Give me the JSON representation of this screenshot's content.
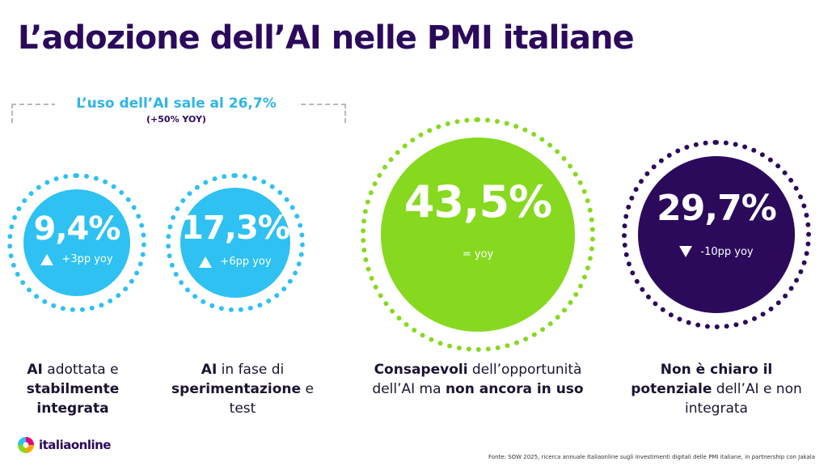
{
  "title": "L’adozione dell’AI nelle PMI italiane",
  "bracket": {
    "title": "L’uso dell’AI sale al 26,7%",
    "subtitle": "(+50% YOY)"
  },
  "colors": {
    "light_blue": "#2ec1f2",
    "green": "#86d91e",
    "dark_purple": "#2b0a5c",
    "title_purple": "#2b0a5c",
    "bracket_blue": "#2fb5e9"
  },
  "chart_data": {
    "type": "bubble-stats",
    "title": "L’adozione dell’AI nelle PMI italiane",
    "series": [
      {
        "value_label": "9,4%",
        "value": 9.4,
        "change": "+3pp yoy",
        "direction": "up",
        "caption": [
          {
            "text": "AI",
            "bold": true
          },
          {
            "text": " adottata e ",
            "bold": false
          },
          {
            "text": "stabilmente integrata",
            "bold": true
          }
        ],
        "color": "#2ec1f2"
      },
      {
        "value_label": "17,3%",
        "value": 17.3,
        "change": "+6pp yoy",
        "direction": "up",
        "caption": [
          {
            "text": "AI",
            "bold": true
          },
          {
            "text": " in fase di ",
            "bold": false
          },
          {
            "text": "sperimentazione",
            "bold": true
          },
          {
            "text": " e test",
            "bold": false
          }
        ],
        "color": "#2ec1f2"
      },
      {
        "value_label": "43,5%",
        "value": 43.5,
        "change": "= yoy",
        "direction": "none",
        "caption": [
          {
            "text": "Consapevoli",
            "bold": true
          },
          {
            "text": " dell’opportunità dell’AI ma ",
            "bold": false
          },
          {
            "text": "non ancora in uso",
            "bold": true
          }
        ],
        "color": "#86d91e"
      },
      {
        "value_label": "29,7%",
        "value": 29.7,
        "change": "-10pp yoy",
        "direction": "down",
        "caption": [
          {
            "text": "Non è chiaro il potenziale",
            "bold": true
          },
          {
            "text": " dell’AI e non integrata",
            "bold": false
          }
        ],
        "color": "#2b0a5c"
      }
    ]
  },
  "logo": {
    "text": "italiaonline"
  },
  "footnote": "Fonte: SOW 2025, ricerca annuale Italiaonline sugli investimenti digitali delle PMI italiane, in partnership con Jakala"
}
